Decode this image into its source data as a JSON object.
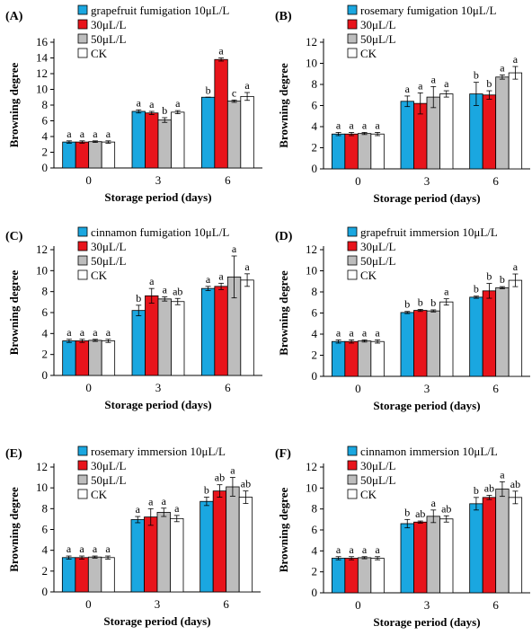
{
  "colors": {
    "10uL": "#1aa7e0",
    "30uL": "#e8141b",
    "50uL": "#bdbdbd",
    "CK": "#ffffff"
  },
  "chart_data": [
    {
      "type": "bar",
      "panel": "(A)",
      "categories": [
        "0",
        "3",
        "6"
      ],
      "xlabel": "Storage period (days)",
      "ylabel": "Browning degree",
      "ylim": [
        0,
        16
      ],
      "yticks": [
        0,
        2,
        4,
        6,
        8,
        10,
        12,
        14,
        16
      ],
      "grid": false,
      "legend_position": "top-left",
      "series": [
        {
          "name": "grapefruit fumigation 10μL/L",
          "values": [
            3.3,
            7.2,
            9.0
          ],
          "errors": [
            0.15,
            0.2,
            0.0
          ],
          "letters": [
            "a",
            "a",
            "b"
          ]
        },
        {
          "name": "30μL/L",
          "values": [
            3.3,
            7.0,
            13.8
          ],
          "errors": [
            0.15,
            0.2,
            0.2
          ],
          "letters": [
            "a",
            "a",
            "a"
          ]
        },
        {
          "name": "50μL/L",
          "values": [
            3.35,
            6.1,
            8.5
          ],
          "errors": [
            0.1,
            0.3,
            0.15
          ],
          "letters": [
            "a",
            "b",
            "c"
          ]
        },
        {
          "name": "CK",
          "values": [
            3.3,
            7.1,
            9.1
          ],
          "errors": [
            0.15,
            0.2,
            0.5
          ],
          "letters": [
            "a",
            "a",
            "a"
          ]
        }
      ]
    },
    {
      "type": "bar",
      "panel": "(B)",
      "categories": [
        "0",
        "3",
        "6"
      ],
      "xlabel": "Storage period (days)",
      "ylabel": "Browning degree",
      "ylim": [
        0,
        12
      ],
      "yticks": [
        0,
        2,
        4,
        6,
        8,
        10,
        12
      ],
      "grid": false,
      "legend_position": "top-left",
      "series": [
        {
          "name": "rosemary fumigation 10μL/L",
          "values": [
            3.3,
            6.4,
            7.1
          ],
          "errors": [
            0.15,
            0.5,
            1.1
          ],
          "letters": [
            "a",
            "a",
            "b"
          ]
        },
        {
          "name": "30μL/L",
          "values": [
            3.3,
            6.2,
            7.0
          ],
          "errors": [
            0.15,
            1.0,
            0.4
          ],
          "letters": [
            "a",
            "a",
            "b"
          ]
        },
        {
          "name": "50μL/L",
          "values": [
            3.35,
            6.8,
            8.7
          ],
          "errors": [
            0.1,
            1.0,
            0.2
          ],
          "letters": [
            "a",
            "a",
            "a"
          ]
        },
        {
          "name": "CK",
          "values": [
            3.3,
            7.1,
            9.1
          ],
          "errors": [
            0.15,
            0.3,
            0.6
          ],
          "letters": [
            "a",
            "a",
            "a"
          ]
        }
      ]
    },
    {
      "type": "bar",
      "panel": "(C)",
      "categories": [
        "0",
        "3",
        "6"
      ],
      "xlabel": "Storage period (days)",
      "ylabel": "Browning degree",
      "ylim": [
        0,
        12
      ],
      "yticks": [
        0,
        2,
        4,
        6,
        8,
        10,
        12
      ],
      "grid": false,
      "legend_position": "top-left",
      "series": [
        {
          "name": "cinnamon fumigation 10μL/L",
          "values": [
            3.3,
            6.2,
            8.3
          ],
          "errors": [
            0.15,
            0.5,
            0.2
          ],
          "letters": [
            "a",
            "b",
            "a"
          ]
        },
        {
          "name": "30μL/L",
          "values": [
            3.3,
            7.6,
            8.5
          ],
          "errors": [
            0.15,
            0.7,
            0.3
          ],
          "letters": [
            "a",
            "a",
            "a"
          ]
        },
        {
          "name": "50μL/L",
          "values": [
            3.35,
            7.3,
            9.4
          ],
          "errors": [
            0.1,
            0.2,
            2.0
          ],
          "letters": [
            "a",
            "a",
            "a"
          ]
        },
        {
          "name": "CK",
          "values": [
            3.3,
            7.05,
            9.1
          ],
          "errors": [
            0.15,
            0.3,
            0.6
          ],
          "letters": [
            "a",
            "ab",
            "a"
          ]
        }
      ]
    },
    {
      "type": "bar",
      "panel": "(D)",
      "categories": [
        "0",
        "3",
        "6"
      ],
      "xlabel": "Storage period (days)",
      "ylabel": "Browning degree",
      "ylim": [
        0,
        12
      ],
      "yticks": [
        0,
        2,
        4,
        6,
        8,
        10,
        12
      ],
      "grid": false,
      "legend_position": "top-left",
      "series": [
        {
          "name": "grapefruit immersion 10μL/L",
          "values": [
            3.3,
            6.05,
            7.5
          ],
          "errors": [
            0.15,
            0.1,
            0.1
          ],
          "letters": [
            "a",
            "b",
            "b"
          ]
        },
        {
          "name": "30μL/L",
          "values": [
            3.3,
            6.25,
            8.1
          ],
          "errors": [
            0.15,
            0.1,
            0.7
          ],
          "letters": [
            "a",
            "b",
            "b"
          ]
        },
        {
          "name": "50μL/L",
          "values": [
            3.35,
            6.2,
            8.4
          ],
          "errors": [
            0.1,
            0.1,
            0.1
          ],
          "letters": [
            "a",
            "b",
            "b"
          ]
        },
        {
          "name": "CK",
          "values": [
            3.3,
            7.05,
            9.1
          ],
          "errors": [
            0.15,
            0.3,
            0.6
          ],
          "letters": [
            "a",
            "a",
            "a"
          ]
        }
      ]
    },
    {
      "type": "bar",
      "panel": "(E)",
      "categories": [
        "0",
        "3",
        "6"
      ],
      "xlabel": "Storage period (days)",
      "ylabel": "Browning degree",
      "ylim": [
        0,
        12
      ],
      "yticks": [
        0,
        2,
        4,
        6,
        8,
        10,
        12
      ],
      "grid": false,
      "legend_position": "top-left",
      "series": [
        {
          "name": "rosemary immersion 10μL/L",
          "values": [
            3.3,
            6.95,
            8.7
          ],
          "errors": [
            0.15,
            0.3,
            0.4
          ],
          "letters": [
            "a",
            "a",
            "b"
          ]
        },
        {
          "name": "30μL/L",
          "values": [
            3.3,
            7.2,
            9.7
          ],
          "errors": [
            0.15,
            0.8,
            0.6
          ],
          "letters": [
            "a",
            "a",
            "ab"
          ]
        },
        {
          "name": "50μL/L",
          "values": [
            3.35,
            7.65,
            10.1
          ],
          "errors": [
            0.1,
            0.4,
            0.9
          ],
          "letters": [
            "a",
            "a",
            "a"
          ]
        },
        {
          "name": "CK",
          "values": [
            3.3,
            7.05,
            9.1
          ],
          "errors": [
            0.15,
            0.3,
            0.6
          ],
          "letters": [
            "a",
            "a",
            "ab"
          ]
        }
      ]
    },
    {
      "type": "bar",
      "panel": "(F)",
      "categories": [
        "0",
        "3",
        "6"
      ],
      "xlabel": "Storage period (days)",
      "ylabel": "Browning degree",
      "ylim": [
        0,
        12
      ],
      "yticks": [
        0,
        2,
        4,
        6,
        8,
        10,
        12
      ],
      "grid": false,
      "legend_position": "top-left",
      "series": [
        {
          "name": "cinnamon immersion 10μL/L",
          "values": [
            3.3,
            6.6,
            8.5
          ],
          "errors": [
            0.15,
            0.4,
            0.6
          ],
          "letters": [
            "a",
            "b",
            "b"
          ]
        },
        {
          "name": "30μL/L",
          "values": [
            3.3,
            6.75,
            9.1
          ],
          "errors": [
            0.15,
            0.1,
            0.2
          ],
          "letters": [
            "a",
            "ab",
            "ab"
          ]
        },
        {
          "name": "50μL/L",
          "values": [
            3.35,
            7.3,
            9.9
          ],
          "errors": [
            0.1,
            0.6,
            0.7
          ],
          "letters": [
            "a",
            "a",
            "a"
          ]
        },
        {
          "name": "CK",
          "values": [
            3.3,
            7.05,
            9.1
          ],
          "errors": [
            0.15,
            0.3,
            0.6
          ],
          "letters": [
            "a",
            "ab",
            "ab"
          ]
        }
      ]
    }
  ]
}
